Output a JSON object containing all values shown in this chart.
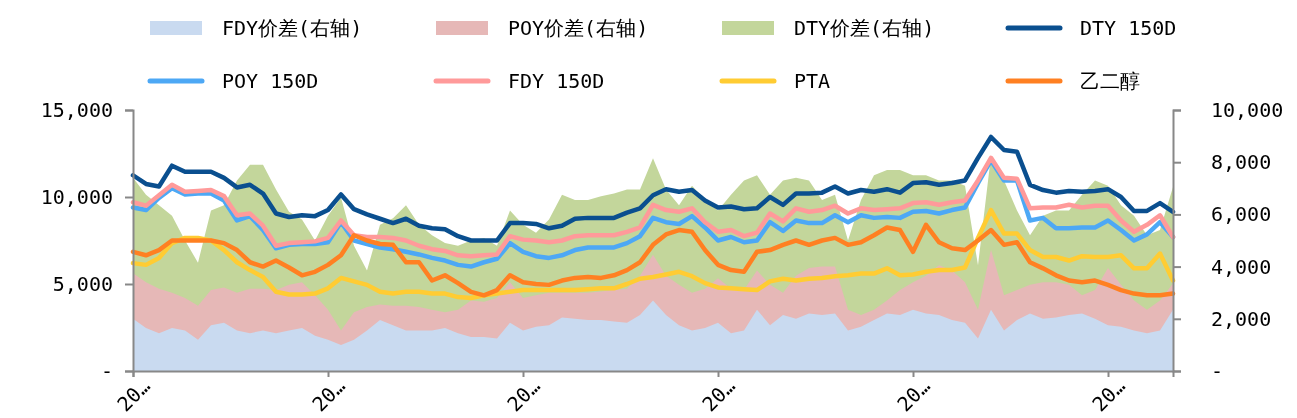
{
  "chart_data": {
    "type": "line",
    "legend": "top",
    "categories": [
      "20…",
      null,
      null,
      null,
      null,
      null,
      null,
      null,
      null,
      null,
      null,
      null,
      null,
      null,
      null,
      "20…",
      null,
      null,
      null,
      null,
      null,
      null,
      null,
      null,
      null,
      null,
      null,
      null,
      null,
      null,
      "20…",
      null,
      null,
      null,
      null,
      null,
      null,
      null,
      null,
      null,
      null,
      null,
      null,
      null,
      null,
      "20…",
      null,
      null,
      null,
      null,
      null,
      null,
      null,
      null,
      null,
      null,
      null,
      null,
      null,
      null,
      "20…",
      null,
      null,
      null,
      null,
      null,
      null,
      null,
      null,
      null,
      null,
      null,
      null,
      null,
      null,
      "20…",
      null,
      null,
      null,
      null,
      null
    ],
    "ylim": [
      0,
      15000
    ],
    "yticks": [
      {
        "value": 0,
        "label": "-"
      },
      {
        "value": 5000,
        "label": "5,000"
      },
      {
        "value": 10000,
        "label": "10,000"
      },
      {
        "value": 15000,
        "label": "15,000"
      }
    ],
    "y2lim": [
      0,
      10000
    ],
    "y2ticks": [
      {
        "value": 0,
        "label": "-"
      },
      {
        "value": 2000,
        "label": "2,000"
      },
      {
        "value": 4000,
        "label": "4,000"
      },
      {
        "value": 6000,
        "label": "6,000"
      },
      {
        "value": 8000,
        "label": "8,000"
      },
      {
        "value": 10000,
        "label": "10,000"
      }
    ],
    "series": [
      {
        "name": "FDY价差(右轴)",
        "type": "area",
        "axis": "y2",
        "color": "#c9daf0",
        "values": [
          2000,
          1650,
          1450,
          1650,
          1550,
          1200,
          1750,
          1850,
          1550,
          1450,
          1550,
          1450,
          1550,
          1650,
          1350,
          1200,
          1000,
          1200,
          1550,
          1950,
          1750,
          1550,
          1550,
          1550,
          1650,
          1450,
          1300,
          1300,
          1250,
          1850,
          1550,
          1700,
          1750,
          2050,
          2000,
          1950,
          1950,
          1900,
          1850,
          2150,
          2700,
          2150,
          1750,
          1550,
          1650,
          1850,
          1450,
          1550,
          2350,
          1750,
          2150,
          2000,
          2200,
          2150,
          2200,
          1550,
          1700,
          1950,
          2200,
          2150,
          2350,
          2200,
          2150,
          1950,
          1850,
          1250,
          2350,
          1550,
          1950,
          2200,
          2000,
          2050,
          2150,
          2200,
          2000,
          1750,
          1700,
          1550,
          1450,
          1550,
          2350
        ]
      },
      {
        "name": "POY价差(右轴)",
        "type": "area",
        "axis": "y2",
        "color": "#e6b8b7",
        "values": [
          3750,
          3400,
          3150,
          3000,
          2800,
          2500,
          3100,
          3200,
          3000,
          3150,
          3150,
          3100,
          3300,
          3400,
          2900,
          2350,
          1550,
          2250,
          2450,
          2550,
          2500,
          2500,
          2450,
          2350,
          2250,
          2350,
          2700,
          2650,
          2800,
          3400,
          2800,
          2900,
          3000,
          3000,
          3000,
          3000,
          3050,
          3100,
          3150,
          3650,
          4450,
          3650,
          3300,
          3000,
          3150,
          3550,
          3150,
          3100,
          3850,
          3300,
          3000,
          3650,
          3950,
          4000,
          4000,
          2350,
          2150,
          2350,
          2700,
          3100,
          3400,
          3650,
          4050,
          3850,
          3400,
          2350,
          4650,
          2900,
          3100,
          3300,
          3400,
          3400,
          3300,
          2900,
          3100,
          3950,
          3300,
          2700,
          2350,
          2700,
          3350
        ]
      },
      {
        "name": "DTY价差(右轴)",
        "type": "area",
        "axis": "y2",
        "color": "#c3d69b",
        "values": [
          7400,
          6750,
          6350,
          5950,
          5000,
          4150,
          6150,
          6350,
          7300,
          7900,
          7900,
          6950,
          6100,
          5800,
          5000,
          5950,
          6650,
          4800,
          3850,
          5600,
          5850,
          6350,
          5600,
          5200,
          4900,
          4800,
          5000,
          5100,
          4800,
          6150,
          5600,
          5300,
          5800,
          6750,
          6550,
          6550,
          6700,
          6800,
          6950,
          6950,
          8150,
          6950,
          6350,
          7100,
          6550,
          6150,
          6750,
          7300,
          7500,
          6750,
          7300,
          7400,
          7300,
          6550,
          6750,
          5000,
          6550,
          7500,
          7700,
          7700,
          7500,
          7500,
          7300,
          7300,
          7100,
          4050,
          8250,
          7300,
          6150,
          5200,
          5950,
          6150,
          6150,
          6750,
          7300,
          7100,
          6350,
          5950,
          5200,
          5400,
          7050
        ]
      },
      {
        "name": "DTY 150D",
        "type": "line",
        "color": "#0a4f8f",
        "values": [
          11250,
          10750,
          10600,
          11800,
          11450,
          11450,
          11450,
          11100,
          10550,
          10700,
          10200,
          9050,
          8850,
          8950,
          8900,
          9250,
          10150,
          9300,
          9000,
          8750,
          8500,
          8750,
          8350,
          8200,
          8150,
          7750,
          7500,
          7500,
          7500,
          8500,
          8500,
          8450,
          8200,
          8350,
          8750,
          8800,
          8800,
          8800,
          9100,
          9350,
          10100,
          10450,
          10300,
          10400,
          9800,
          9400,
          9450,
          9300,
          9350,
          10000,
          9550,
          10200,
          10200,
          10250,
          10600,
          10200,
          10400,
          10300,
          10450,
          10250,
          10800,
          10850,
          10700,
          10800,
          10950,
          12250,
          13450,
          12700,
          12600,
          10700,
          10400,
          10250,
          10350,
          10300,
          10350,
          10450,
          10000,
          9200,
          9200,
          9650,
          9150
        ]
      },
      {
        "name": "POY 150D",
        "type": "line",
        "color": "#4da8f5",
        "values": [
          9400,
          9250,
          9950,
          10500,
          10150,
          10200,
          10200,
          9800,
          8650,
          8900,
          8100,
          7050,
          7250,
          7300,
          7300,
          7400,
          8550,
          7500,
          7300,
          7100,
          7000,
          6850,
          6700,
          6500,
          6350,
          6100,
          6000,
          6250,
          6450,
          7350,
          6850,
          6600,
          6500,
          6650,
          6950,
          7100,
          7100,
          7100,
          7350,
          7750,
          8800,
          8550,
          8450,
          8900,
          8250,
          7500,
          7700,
          7400,
          7500,
          8550,
          8050,
          8650,
          8500,
          8500,
          8950,
          8550,
          8950,
          8800,
          8850,
          8800,
          9150,
          9200,
          9050,
          9250,
          9400,
          10800,
          12100,
          10950,
          10950,
          8650,
          8800,
          8200,
          8200,
          8250,
          8250,
          8650,
          8100,
          7500,
          7850,
          8550,
          7700
        ]
      },
      {
        "name": "FDY 150D",
        "type": "line",
        "color": "#ff9a9a",
        "values": [
          9700,
          9500,
          10100,
          10700,
          10300,
          10350,
          10400,
          10050,
          8950,
          9050,
          8350,
          7200,
          7350,
          7400,
          7450,
          7650,
          8650,
          7800,
          7700,
          7700,
          7650,
          7500,
          7200,
          7000,
          6900,
          6650,
          6600,
          6650,
          6700,
          7750,
          7550,
          7500,
          7400,
          7500,
          7750,
          7800,
          7800,
          7800,
          8000,
          8250,
          9550,
          9250,
          9150,
          9350,
          8550,
          8000,
          8100,
          7750,
          7950,
          9050,
          8600,
          9350,
          9150,
          9250,
          9500,
          9050,
          9350,
          9250,
          9300,
          9350,
          9650,
          9700,
          9550,
          9700,
          9800,
          10950,
          12250,
          11100,
          11050,
          9350,
          9400,
          9400,
          9550,
          9400,
          9500,
          9500,
          8650,
          8000,
          8400,
          8950,
          7700
        ]
      },
      {
        "name": "PTA",
        "type": "line",
        "color": "#ffcc33",
        "values": [
          6200,
          6100,
          6500,
          7350,
          7650,
          7650,
          7500,
          6950,
          6250,
          5800,
          5400,
          4550,
          4400,
          4400,
          4450,
          4750,
          5350,
          5150,
          4950,
          4550,
          4450,
          4550,
          4550,
          4450,
          4450,
          4250,
          4200,
          4350,
          4450,
          4550,
          4650,
          4650,
          4650,
          4650,
          4650,
          4700,
          4750,
          4750,
          5000,
          5300,
          5400,
          5550,
          5700,
          5450,
          5050,
          4800,
          4750,
          4700,
          4650,
          5150,
          5300,
          5200,
          5300,
          5350,
          5450,
          5500,
          5600,
          5600,
          5900,
          5500,
          5550,
          5700,
          5800,
          5800,
          5950,
          7650,
          9250,
          7900,
          7900,
          6950,
          6550,
          6550,
          6350,
          6600,
          6550,
          6550,
          6650,
          5900,
          5900,
          6750,
          5200
        ]
      },
      {
        "name": "乙二醇",
        "type": "line",
        "color": "#ff8022",
        "values": [
          6850,
          6650,
          6950,
          7500,
          7500,
          7500,
          7500,
          7350,
          6950,
          6250,
          6000,
          6350,
          5950,
          5500,
          5700,
          6100,
          6650,
          7800,
          7500,
          7300,
          7250,
          6250,
          6250,
          5200,
          5500,
          5050,
          4550,
          4350,
          4650,
          5500,
          5100,
          5000,
          4950,
          5200,
          5350,
          5400,
          5350,
          5500,
          5800,
          6250,
          7250,
          7850,
          8100,
          8000,
          6950,
          6100,
          5800,
          5700,
          6850,
          6950,
          7250,
          7500,
          7250,
          7500,
          7650,
          7250,
          7400,
          7800,
          8250,
          8100,
          6850,
          8400,
          7400,
          7050,
          6950,
          7500,
          8100,
          7250,
          7400,
          6250,
          5900,
          5500,
          5200,
          5100,
          5200,
          4950,
          4650,
          4450,
          4350,
          4350,
          4450
        ]
      }
    ]
  }
}
